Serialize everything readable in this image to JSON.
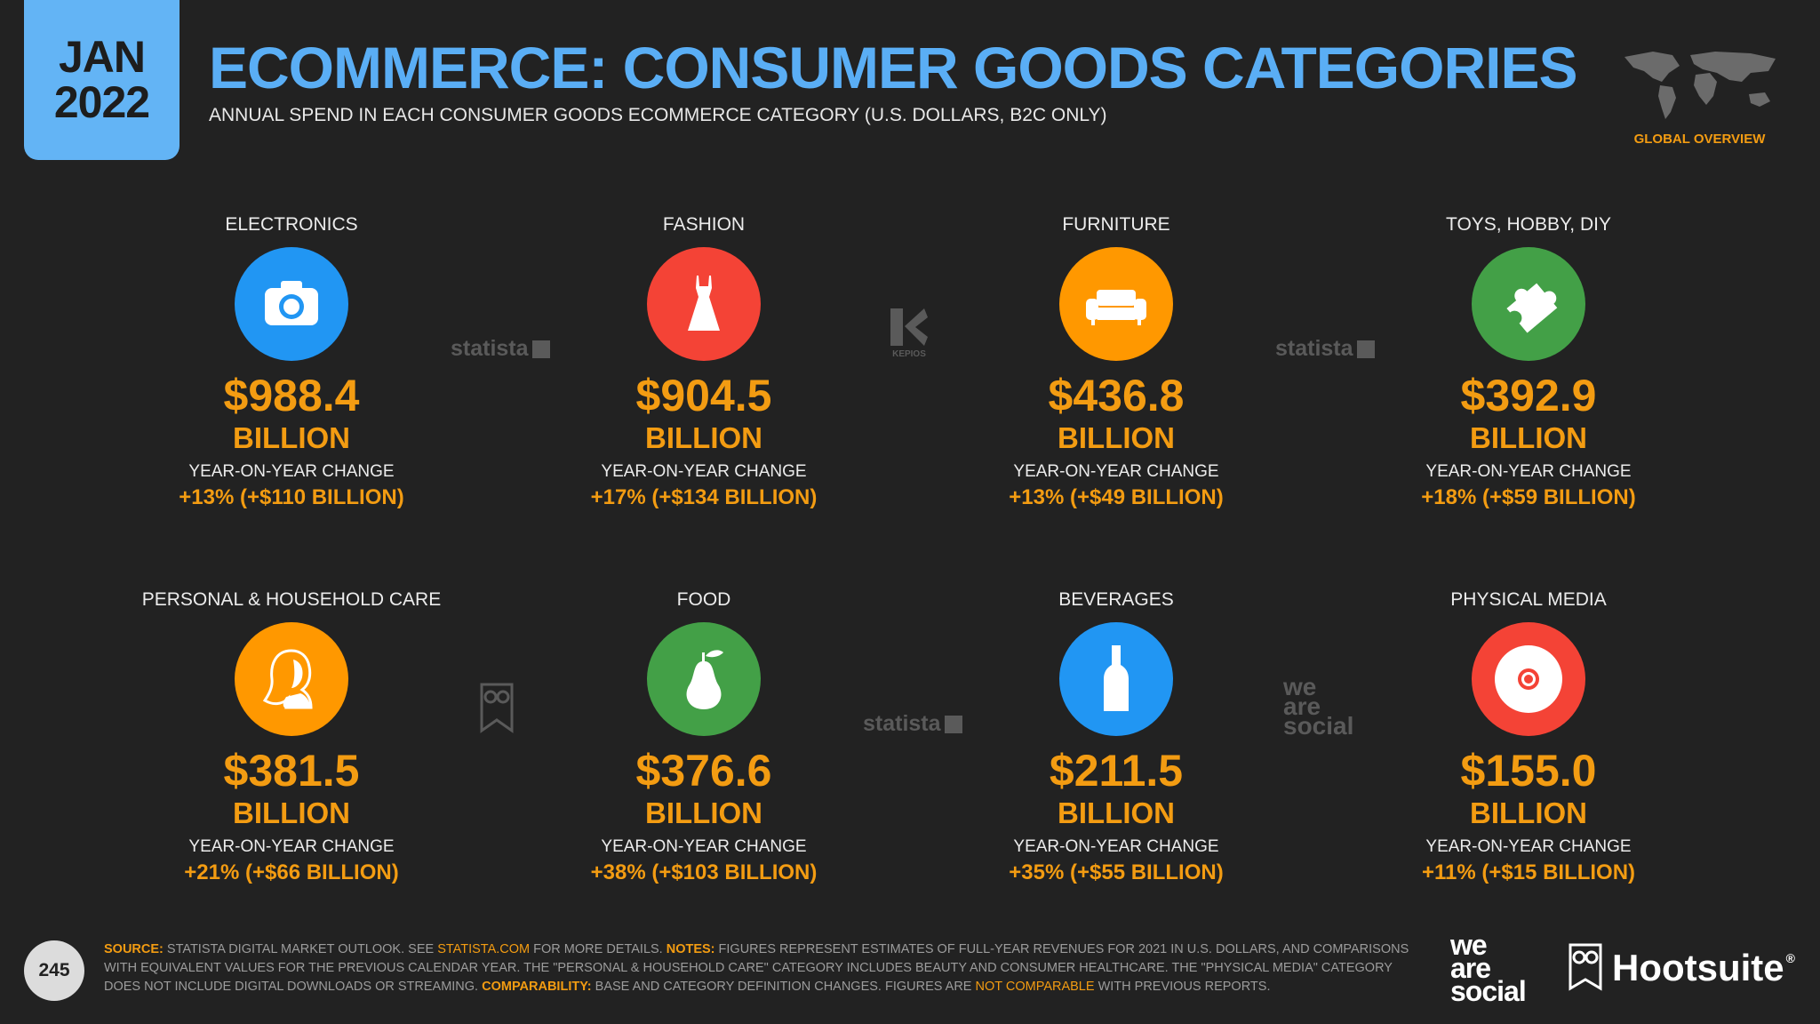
{
  "header": {
    "month": "JAN",
    "year": "2022",
    "title": "ECOMMERCE: CONSUMER GOODS CATEGORIES",
    "subtitle": "ANNUAL SPEND IN EACH CONSUMER GOODS ECOMMERCE CATEGORY (U.S. DOLLARS, B2C ONLY)",
    "region_label": "GLOBAL OVERVIEW"
  },
  "colors": {
    "accent": "#f39c12",
    "title": "#5aaef5",
    "background": "#222222"
  },
  "chart_data": {
    "type": "table",
    "title": "ECOMMERCE: CONSUMER GOODS CATEGORIES",
    "unit": "BILLION",
    "yoy_label": "YEAR-ON-YEAR CHANGE",
    "categories": [
      {
        "name": "ELECTRONICS",
        "value": 988.4,
        "value_text": "$988.4",
        "unit": "BILLION",
        "yoy_pct": 13,
        "yoy_abs": 110,
        "yoy_text": "+13% (+$110 BILLION)",
        "icon": "camera-icon",
        "color": "#2196f3"
      },
      {
        "name": "FASHION",
        "value": 904.5,
        "value_text": "$904.5",
        "unit": "BILLION",
        "yoy_pct": 17,
        "yoy_abs": 134,
        "yoy_text": "+17% (+$134 BILLION)",
        "icon": "dress-icon",
        "color": "#f44336"
      },
      {
        "name": "FURNITURE",
        "value": 436.8,
        "value_text": "$436.8",
        "unit": "BILLION",
        "yoy_pct": 13,
        "yoy_abs": 49,
        "yoy_text": "+13% (+$49 BILLION)",
        "icon": "sofa-icon",
        "color": "#ff9800"
      },
      {
        "name": "TOYS, HOBBY, DIY",
        "value": 392.9,
        "value_text": "$392.9",
        "unit": "BILLION",
        "yoy_pct": 18,
        "yoy_abs": 59,
        "yoy_text": "+18% (+$59 BILLION)",
        "icon": "puzzle-piece-icon",
        "color": "#43a047"
      },
      {
        "name": "PERSONAL & HOUSEHOLD CARE",
        "value": 381.5,
        "value_text": "$381.5",
        "unit": "BILLION",
        "yoy_pct": 21,
        "yoy_abs": 66,
        "yoy_text": "+21% (+$66 BILLION)",
        "icon": "woman-profile-icon",
        "color": "#ff9800"
      },
      {
        "name": "FOOD",
        "value": 376.6,
        "value_text": "$376.6",
        "unit": "BILLION",
        "yoy_pct": 38,
        "yoy_abs": 103,
        "yoy_text": "+38% (+$103 BILLION)",
        "icon": "pear-icon",
        "color": "#43a047"
      },
      {
        "name": "BEVERAGES",
        "value": 211.5,
        "value_text": "$211.5",
        "unit": "BILLION",
        "yoy_pct": 35,
        "yoy_abs": 55,
        "yoy_text": "+35% (+$55 BILLION)",
        "icon": "bottle-icon",
        "color": "#2196f3"
      },
      {
        "name": "PHYSICAL MEDIA",
        "value": 155.0,
        "value_text": "$155.0",
        "unit": "BILLION",
        "yoy_pct": 11,
        "yoy_abs": 15,
        "yoy_text": "+11% (+$15 BILLION)",
        "icon": "disc-icon",
        "color": "#f44336"
      }
    ]
  },
  "watermarks": {
    "statista": "statista",
    "kepios": "KEPIOS",
    "was_line1": "we",
    "was_line2": "are",
    "was_line3": "social"
  },
  "footer": {
    "page_number": "245",
    "source_label": "SOURCE:",
    "source_text": " STATISTA DIGITAL MARKET OUTLOOK. SEE ",
    "source_link": "STATISTA.COM",
    "source_text2": " FOR MORE DETAILS. ",
    "notes_label": "NOTES:",
    "notes_text": " FIGURES REPRESENT ESTIMATES OF FULL-YEAR REVENUES FOR 2021 IN U.S. DOLLARS, AND COMPARISONS WITH EQUIVALENT VALUES FOR THE PREVIOUS CALENDAR YEAR. THE \"PERSONAL & HOUSEHOLD CARE\" CATEGORY INCLUDES BEAUTY AND CONSUMER HEALTHCARE. THE \"PHYSICAL MEDIA\" CATEGORY DOES NOT INCLUDE DIGITAL DOWNLOADS OR STREAMING. ",
    "comparability_label": "COMPARABILITY:",
    "comparability_text": " BASE AND CATEGORY DEFINITION CHANGES. FIGURES ARE ",
    "not_comparable": "NOT COMPARABLE",
    "comparability_text2": " WITH PREVIOUS REPORTS.",
    "brand_was_1": "we",
    "brand_was_2": "are",
    "brand_was_3": "social",
    "brand_hootsuite": "Hootsuite",
    "brand_reg": "®"
  }
}
